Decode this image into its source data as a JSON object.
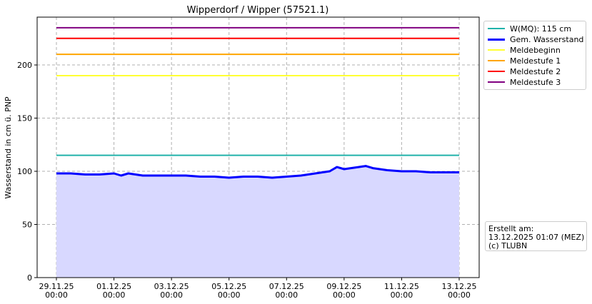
{
  "chart_data": {
    "type": "line",
    "title": "Wipperdorf / Wipper (57521.1)",
    "xlabel": "",
    "ylabel": "Wasserstand in cm ü. PNP",
    "ylim": [
      0,
      245
    ],
    "y_ticks": [
      0,
      50,
      100,
      150,
      200
    ],
    "x_range": [
      "2025-11-29 00:00",
      "2025-12-13 00:00"
    ],
    "x_ticks": [
      {
        "date": "2025-11-29",
        "label1": "29.11.25",
        "label2": "00:00"
      },
      {
        "date": "2025-12-01",
        "label1": "01.12.25",
        "label2": "00:00"
      },
      {
        "date": "2025-12-03",
        "label1": "03.12.25",
        "label2": "00:00"
      },
      {
        "date": "2025-12-05",
        "label1": "05.12.25",
        "label2": "00:00"
      },
      {
        "date": "2025-12-07",
        "label1": "07.12.25",
        "label2": "00:00"
      },
      {
        "date": "2025-12-09",
        "label1": "09.12.25",
        "label2": "00:00"
      },
      {
        "date": "2025-12-11",
        "label1": "11.12.25",
        "label2": "00:00"
      },
      {
        "date": "2025-12-13",
        "label1": "13.12.25",
        "label2": "00:00"
      }
    ],
    "grid": true,
    "legend_position": "outside-top-right",
    "thresholds": [
      {
        "name": "W(MQ): 115 cm",
        "value": 115,
        "color": "#20b2aa"
      },
      {
        "name": "Meldebeginn",
        "value": 190,
        "color": "#ffff33"
      },
      {
        "name": "Meldestufe 1",
        "value": 210,
        "color": "#ffa500"
      },
      {
        "name": "Meldestufe 2",
        "value": 225,
        "color": "#ff0000"
      },
      {
        "name": "Meldestufe 3",
        "value": 235,
        "color": "#800080"
      }
    ],
    "series": [
      {
        "name": "Gem. Wasserstand",
        "color": "#0000ff",
        "fill": "#d8d8ff",
        "points": [
          [
            "2025-11-29 00:00",
            98
          ],
          [
            "2025-11-29 12:00",
            98
          ],
          [
            "2025-11-30 00:00",
            97
          ],
          [
            "2025-11-30 12:00",
            97
          ],
          [
            "2025-12-01 00:00",
            98
          ],
          [
            "2025-12-01 06:00",
            96
          ],
          [
            "2025-12-01 12:00",
            98
          ],
          [
            "2025-12-02 00:00",
            96
          ],
          [
            "2025-12-02 12:00",
            96
          ],
          [
            "2025-12-03 00:00",
            96
          ],
          [
            "2025-12-03 12:00",
            96
          ],
          [
            "2025-12-04 00:00",
            95
          ],
          [
            "2025-12-04 12:00",
            95
          ],
          [
            "2025-12-05 00:00",
            94
          ],
          [
            "2025-12-05 12:00",
            95
          ],
          [
            "2025-12-06 00:00",
            95
          ],
          [
            "2025-12-06 12:00",
            94
          ],
          [
            "2025-12-07 00:00",
            95
          ],
          [
            "2025-12-07 12:00",
            96
          ],
          [
            "2025-12-08 00:00",
            98
          ],
          [
            "2025-12-08 12:00",
            100
          ],
          [
            "2025-12-08 18:00",
            104
          ],
          [
            "2025-12-09 00:00",
            102
          ],
          [
            "2025-12-09 12:00",
            104
          ],
          [
            "2025-12-09 18:00",
            105
          ],
          [
            "2025-12-10 00:00",
            103
          ],
          [
            "2025-12-10 12:00",
            101
          ],
          [
            "2025-12-11 00:00",
            100
          ],
          [
            "2025-12-11 12:00",
            100
          ],
          [
            "2025-12-12 00:00",
            99
          ],
          [
            "2025-12-12 12:00",
            99
          ],
          [
            "2025-12-13 00:00",
            99
          ]
        ]
      }
    ]
  },
  "info": {
    "created_label": "Erstellt am:",
    "created_value": "13.12.2025 01:07 (MEZ)",
    "copyright": "(c) TLUBN"
  }
}
